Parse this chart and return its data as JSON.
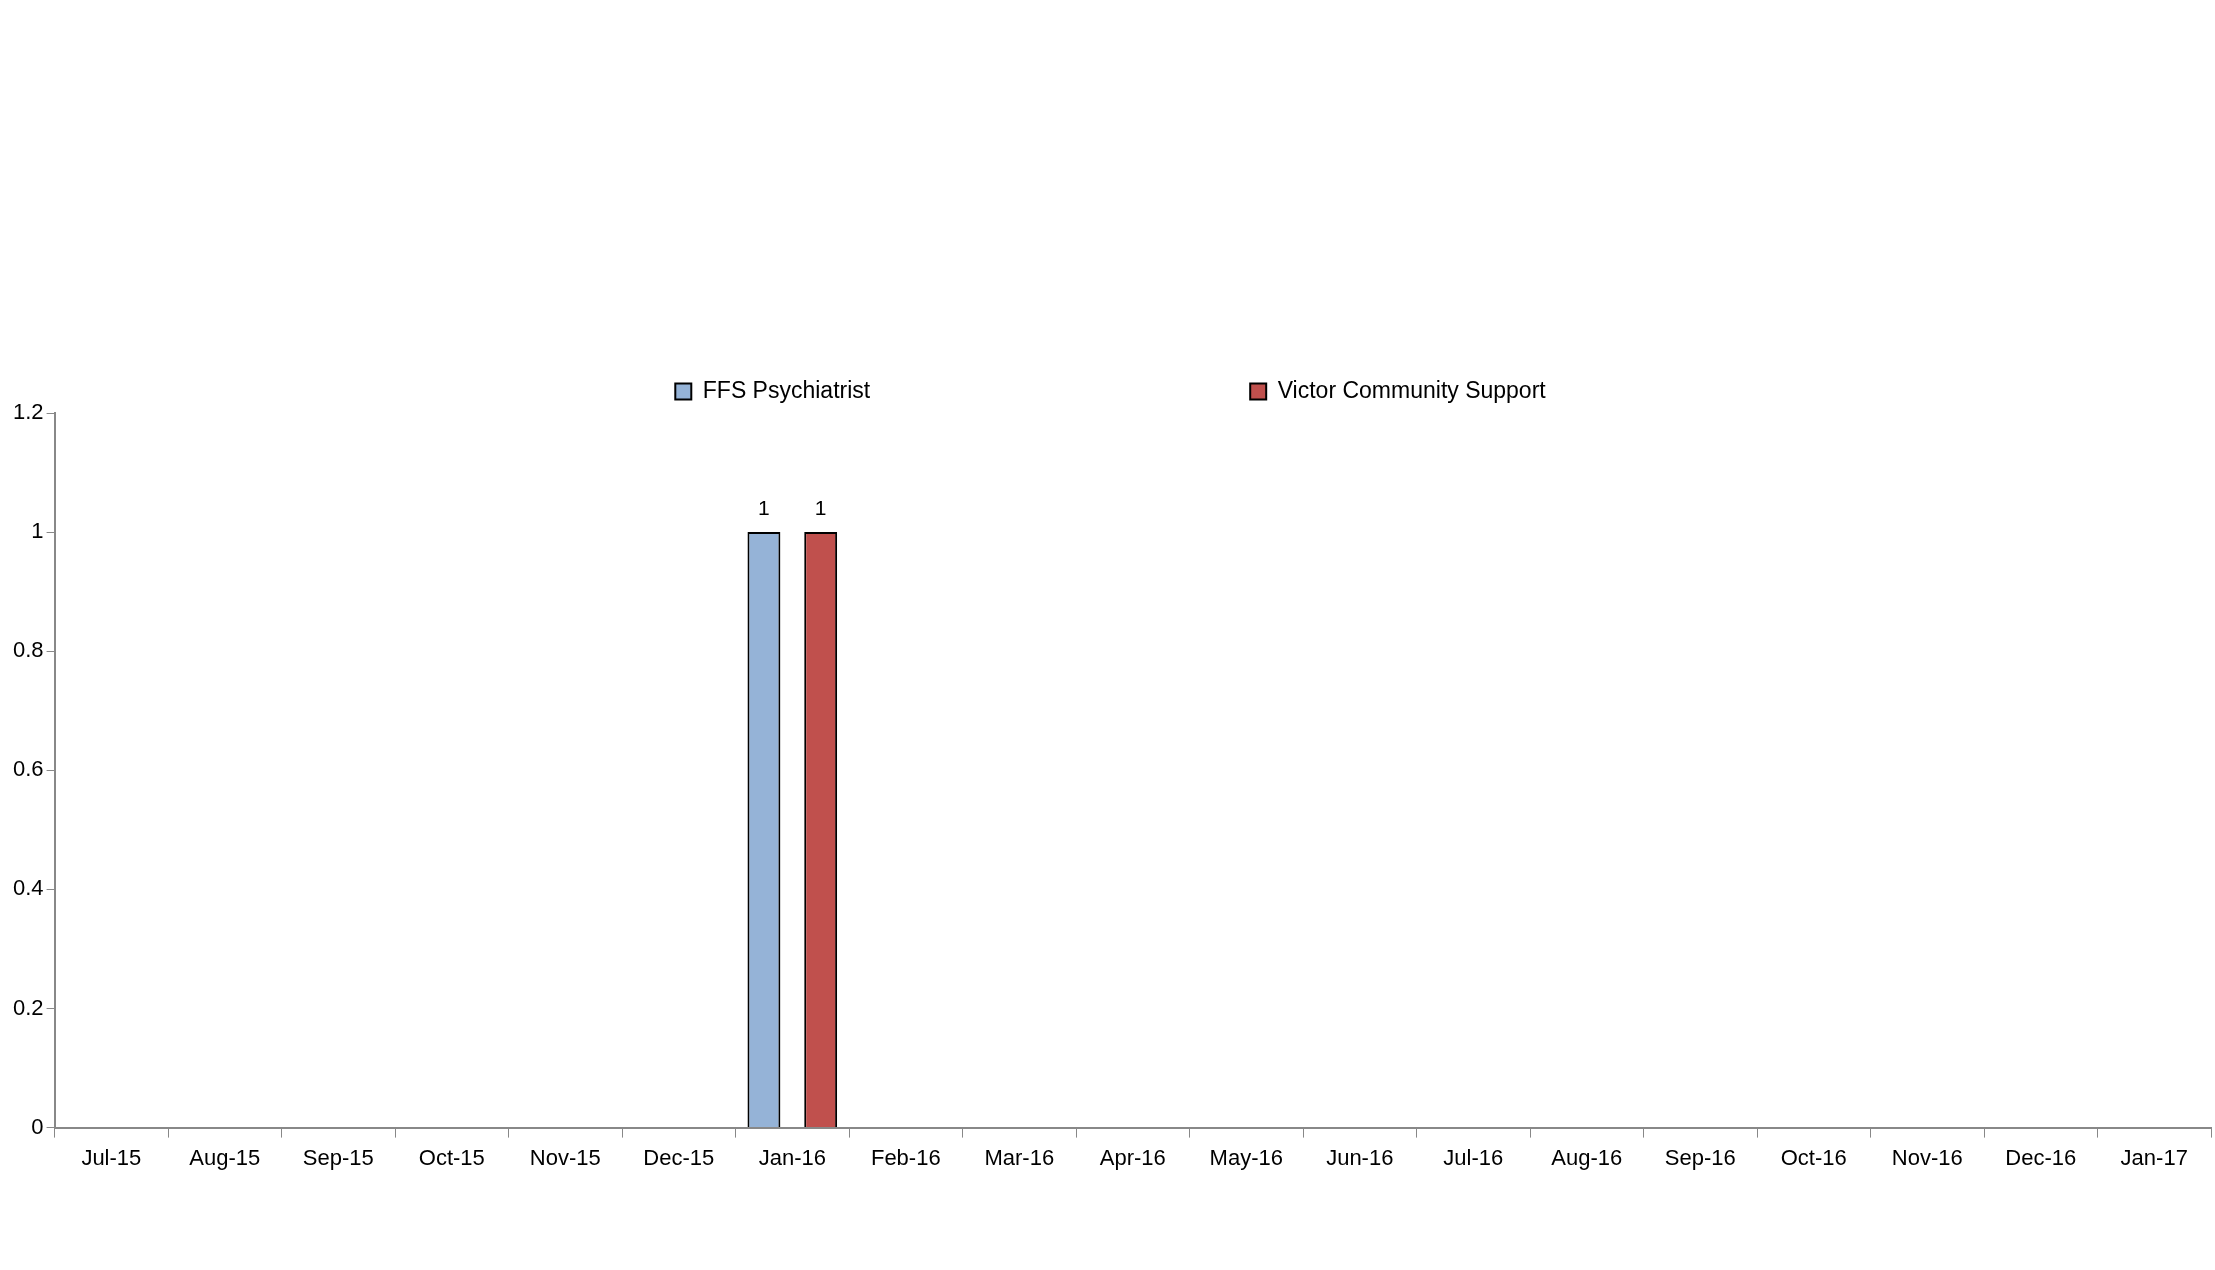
{
  "chart_data": {
    "type": "bar",
    "categories": [
      "Jul-15",
      "Aug-15",
      "Sep-15",
      "Oct-15",
      "Nov-15",
      "Dec-15",
      "Jan-16",
      "Feb-16",
      "Mar-16",
      "Apr-16",
      "May-16",
      "Jun-16",
      "Jul-16",
      "Aug-16",
      "Sep-16",
      "Oct-16",
      "Nov-16",
      "Dec-16",
      "Jan-17"
    ],
    "series": [
      {
        "name": "FFS Psychiatrist",
        "color": "#95b3d7",
        "values": [
          0,
          0,
          0,
          0,
          0,
          0,
          1,
          0,
          0,
          0,
          0,
          0,
          0,
          0,
          0,
          0,
          0,
          0,
          0
        ],
        "value_labels": [
          null,
          null,
          null,
          null,
          null,
          null,
          "1",
          null,
          null,
          null,
          null,
          null,
          null,
          null,
          null,
          null,
          null,
          null,
          null
        ]
      },
      {
        "name": "Victor Community Support",
        "color": "#c0504d",
        "values": [
          0,
          0,
          0,
          0,
          0,
          0,
          1,
          0,
          0,
          0,
          0,
          0,
          0,
          0,
          0,
          0,
          0,
          0,
          0
        ],
        "value_labels": [
          null,
          null,
          null,
          null,
          null,
          null,
          "1",
          null,
          null,
          null,
          null,
          null,
          null,
          null,
          null,
          null,
          null,
          null,
          null
        ]
      }
    ],
    "ylim": [
      0,
      1.2
    ],
    "yticks": [
      0,
      0.2,
      0.4,
      0.6,
      0.8,
      1,
      1.2
    ],
    "grid": false,
    "legend": "top"
  }
}
